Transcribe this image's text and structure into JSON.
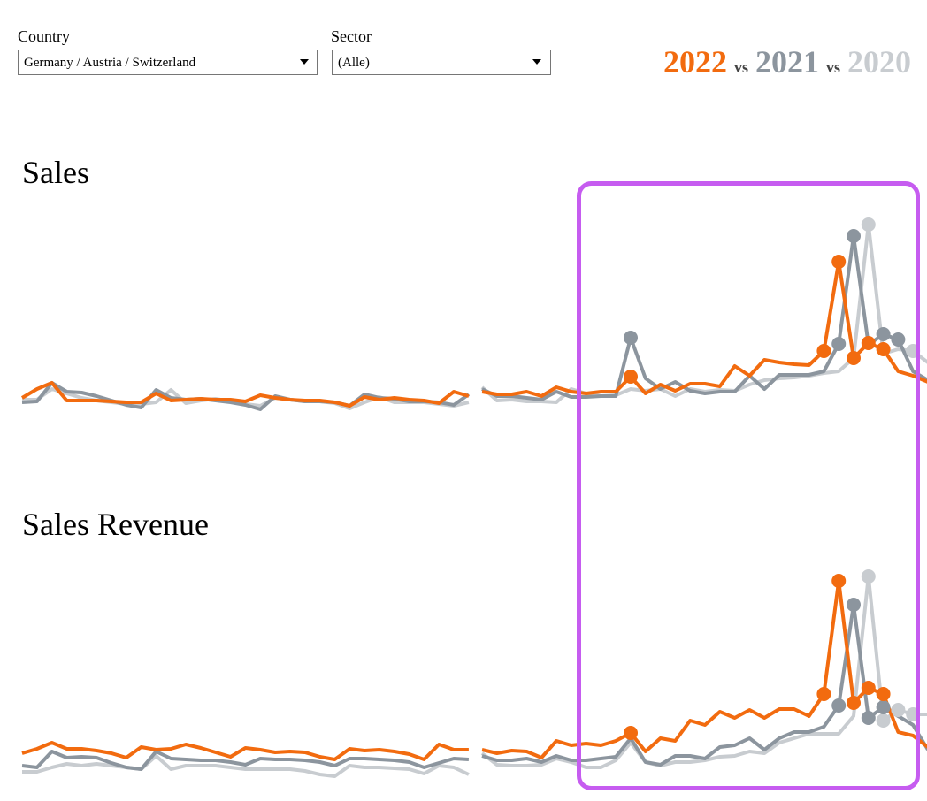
{
  "filters": [
    {
      "label": "Country",
      "value": "Germany / Austria / Switzerland"
    },
    {
      "label": "Sector",
      "value": "(Alle)"
    }
  ],
  "legend_separator": "vs",
  "chart_data": [
    {
      "type": "line",
      "title": "Sales",
      "ylim": [
        0,
        240
      ],
      "categories": [
        null,
        null,
        null,
        null,
        null,
        null,
        null,
        null,
        null,
        null,
        null,
        null,
        null,
        null,
        null,
        null,
        null,
        null,
        null,
        null,
        null,
        null,
        null,
        null,
        null,
        null,
        null,
        null,
        null,
        null,
        null
      ],
      "series": [
        {
          "name": "2022",
          "color": "#f26b0f",
          "values": [
            20,
            30,
            37,
            17,
            17,
            17,
            16,
            15,
            15,
            25,
            17,
            18,
            19,
            18,
            18,
            16,
            23,
            20,
            18,
            17,
            17,
            15,
            11,
            21,
            18,
            20,
            18,
            17,
            14,
            27,
            22
          ],
          "markers": []
        },
        {
          "name": "2021",
          "color": "#8c959e",
          "values": [
            15,
            16,
            37,
            27,
            26,
            22,
            17,
            12,
            9,
            29,
            20,
            18,
            19,
            17,
            15,
            12,
            7,
            22,
            18,
            16,
            16,
            15,
            11,
            24,
            20,
            19,
            16,
            16,
            15,
            12,
            24
          ],
          "markers": []
        },
        {
          "name": "2020",
          "color": "#c8ccd0",
          "values": [
            18,
            18,
            30,
            25,
            20,
            17,
            15,
            13,
            13,
            15,
            29,
            14,
            17,
            19,
            16,
            13,
            11,
            20,
            18,
            16,
            16,
            14,
            8,
            15,
            21,
            15,
            15,
            15,
            13,
            11,
            15
          ],
          "markers": []
        }
      ]
    },
    {
      "type": "line",
      "ylim": [
        0,
        240
      ],
      "categories": [
        null,
        null,
        null,
        null,
        null,
        null,
        null,
        null,
        null,
        null,
        null,
        null,
        null,
        null,
        null,
        null,
        null,
        null,
        null,
        null,
        null,
        null,
        null,
        null,
        null,
        null,
        null,
        null,
        null,
        null,
        null
      ],
      "series": [
        {
          "name": "2022",
          "color": "#f26b0f",
          "values": [
            27,
            24,
            24,
            27,
            22,
            32,
            27,
            25,
            27,
            27,
            44,
            25,
            35,
            28,
            36,
            36,
            33,
            56,
            45,
            63,
            60,
            58,
            57,
            73,
            174,
            65,
            82,
            75,
            50,
            45,
            38
          ],
          "markers": [
            10,
            23,
            24,
            25,
            26,
            27
          ]
        },
        {
          "name": "2021",
          "color": "#8c959e",
          "values": [
            30,
            22,
            22,
            20,
            18,
            27,
            21,
            21,
            22,
            22,
            88,
            42,
            30,
            38,
            28,
            25,
            27,
            27,
            45,
            30,
            46,
            46,
            46,
            50,
            81,
            203,
            80,
            92,
            86,
            50,
            40
          ],
          "markers": [
            10,
            24,
            25,
            27,
            28
          ]
        },
        {
          "name": "2020",
          "color": "#c8ccd0",
          "values": [
            32,
            17,
            18,
            16,
            16,
            15,
            30,
            25,
            22,
            23,
            30,
            28,
            30,
            22,
            30,
            27,
            29,
            28,
            35,
            40,
            42,
            43,
            45,
            48,
            50,
            65,
            216,
            70,
            75,
            73,
            60
          ],
          "markers": [
            26,
            29
          ]
        }
      ]
    },
    {
      "type": "line",
      "title": "Sales Revenue",
      "ylim": [
        0,
        240
      ],
      "categories": [
        null,
        null,
        null,
        null,
        null,
        null,
        null,
        null,
        null,
        null,
        null,
        null,
        null,
        null,
        null,
        null,
        null,
        null,
        null,
        null,
        null,
        null,
        null,
        null,
        null,
        null,
        null,
        null,
        null,
        null,
        null
      ],
      "series": [
        {
          "name": "2022",
          "color": "#f26b0f",
          "values": [
            28,
            33,
            40,
            33,
            33,
            31,
            28,
            23,
            35,
            32,
            33,
            38,
            34,
            29,
            24,
            34,
            32,
            29,
            30,
            29,
            24,
            21,
            33,
            31,
            32,
            30,
            27,
            21,
            38,
            32,
            32
          ],
          "markers": []
        },
        {
          "name": "2021",
          "color": "#8c959e",
          "values": [
            14,
            12,
            30,
            23,
            24,
            23,
            17,
            12,
            10,
            30,
            22,
            21,
            20,
            20,
            18,
            15,
            22,
            21,
            21,
            20,
            18,
            14,
            22,
            22,
            21,
            20,
            18,
            12,
            17,
            22,
            21
          ],
          "markers": []
        },
        {
          "name": "2020",
          "color": "#c8ccd0",
          "values": [
            7,
            7,
            12,
            16,
            14,
            16,
            14,
            12,
            10,
            25,
            10,
            14,
            14,
            14,
            12,
            10,
            10,
            10,
            10,
            8,
            4,
            2,
            14,
            12,
            12,
            11,
            10,
            5,
            14,
            12,
            4
          ],
          "markers": []
        }
      ]
    },
    {
      "type": "line",
      "ylim": [
        0,
        240
      ],
      "categories": [
        null,
        null,
        null,
        null,
        null,
        null,
        null,
        null,
        null,
        null,
        null,
        null,
        null,
        null,
        null,
        null,
        null,
        null,
        null,
        null,
        null,
        null,
        null,
        null,
        null,
        null,
        null,
        null,
        null,
        null,
        null
      ],
      "series": [
        {
          "name": "2022",
          "color": "#f26b0f",
          "values": [
            32,
            28,
            31,
            30,
            23,
            42,
            37,
            39,
            37,
            42,
            51,
            30,
            45,
            42,
            65,
            60,
            75,
            68,
            77,
            68,
            78,
            78,
            70,
            95,
            223,
            85,
            102,
            95,
            52,
            48,
            35
          ],
          "markers": [
            10,
            23,
            24,
            25,
            26,
            27
          ]
        },
        {
          "name": "2021",
          "color": "#8c959e",
          "values": [
            25,
            20,
            20,
            22,
            18,
            25,
            20,
            20,
            22,
            24,
            45,
            18,
            15,
            25,
            25,
            22,
            35,
            37,
            45,
            32,
            45,
            52,
            52,
            58,
            82,
            196,
            68,
            80,
            70,
            60,
            32
          ],
          "markers": [
            24,
            25,
            26,
            27
          ]
        },
        {
          "name": "2020",
          "color": "#c8ccd0",
          "values": [
            28,
            15,
            14,
            14,
            15,
            22,
            18,
            12,
            12,
            20,
            40,
            18,
            14,
            18,
            18,
            20,
            24,
            25,
            30,
            28,
            40,
            45,
            50,
            50,
            50,
            70,
            228,
            65,
            77,
            72,
            72
          ],
          "markers": [
            26,
            27,
            28,
            29
          ]
        }
      ]
    }
  ]
}
